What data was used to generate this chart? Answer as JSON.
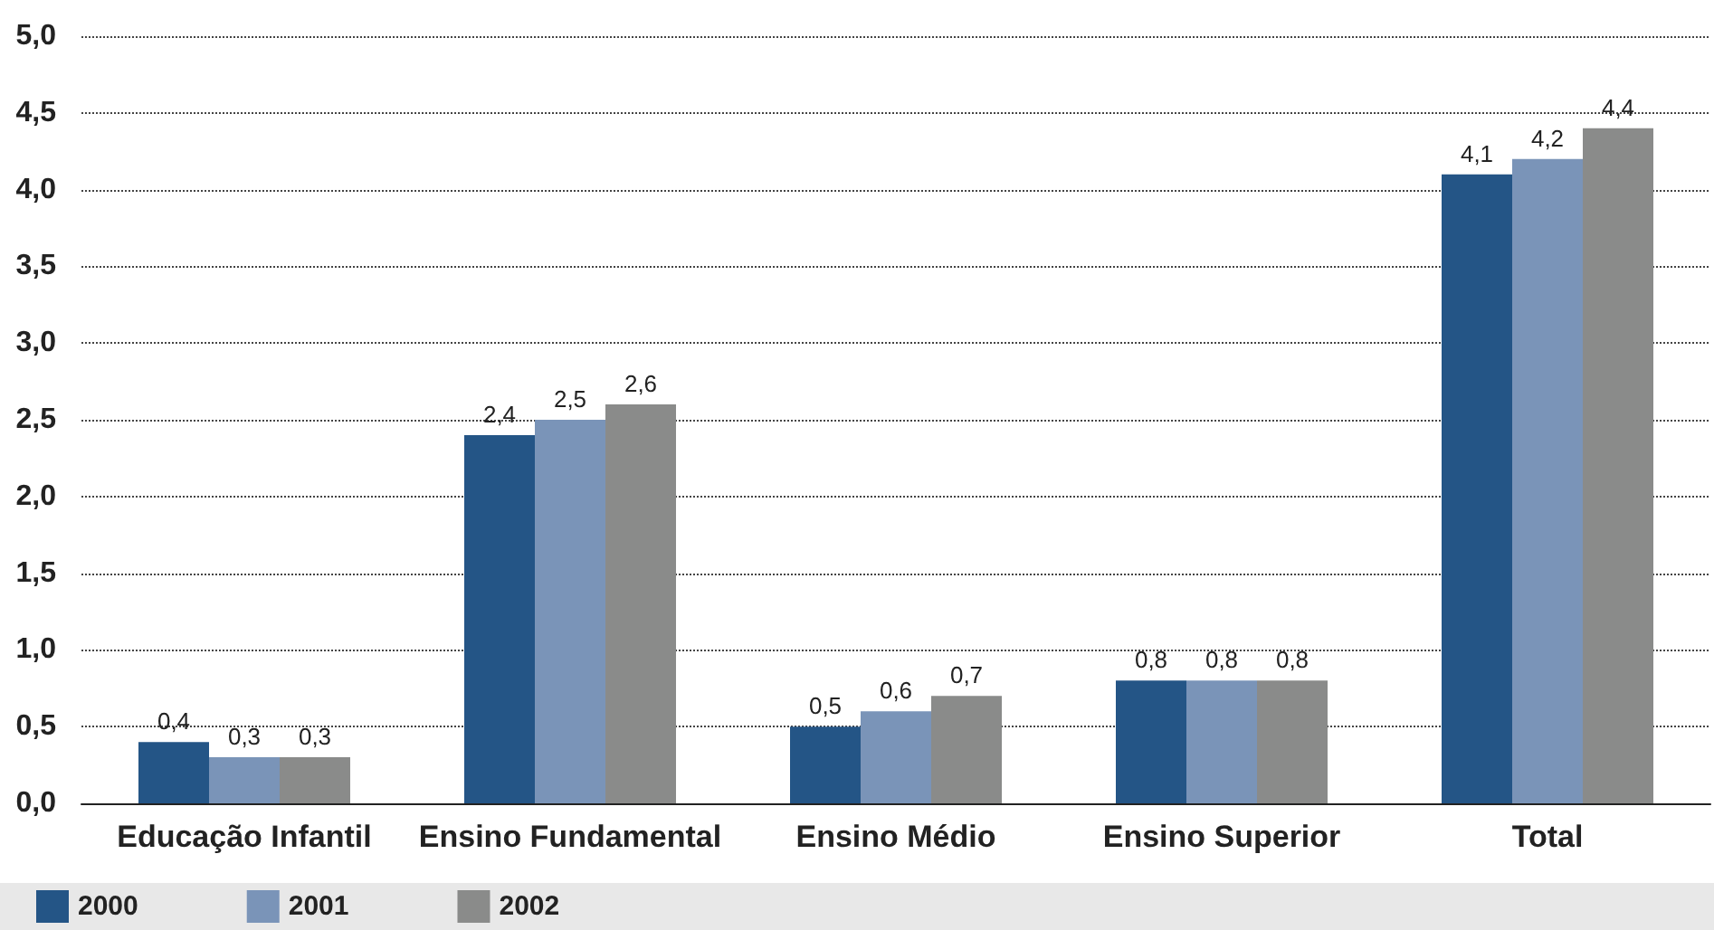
{
  "chart_data": {
    "type": "bar",
    "categories": [
      "Educação Infantil",
      "Ensino Fundamental",
      "Ensino Médio",
      "Ensino Superior",
      "Total"
    ],
    "series": [
      {
        "name": "2000",
        "color": "#245586",
        "values": [
          0.4,
          2.4,
          0.5,
          0.8,
          4.1
        ],
        "value_labels": [
          "0,4",
          "2,4",
          "0,5",
          "0,8",
          "4,1"
        ]
      },
      {
        "name": "2001",
        "color": "#7a94b8",
        "values": [
          0.3,
          2.5,
          0.6,
          0.8,
          4.2
        ],
        "value_labels": [
          "0,3",
          "2,5",
          "0,6",
          "0,8",
          "4,2"
        ]
      },
      {
        "name": "2002",
        "color": "#8a8b8a",
        "values": [
          0.3,
          2.6,
          0.7,
          0.8,
          4.4
        ],
        "value_labels": [
          "0,3",
          "2,6",
          "0,7",
          "0,8",
          "4,4"
        ]
      }
    ],
    "ylim": [
      0,
      5
    ],
    "yticks": [
      {
        "value": 0,
        "label": "0,0"
      },
      {
        "value": 0.5,
        "label": "0,5"
      },
      {
        "value": 1,
        "label": "1,0"
      },
      {
        "value": 1.5,
        "label": "1,5"
      },
      {
        "value": 2,
        "label": "2,0"
      },
      {
        "value": 2.5,
        "label": "2,5"
      },
      {
        "value": 3,
        "label": "3,0"
      },
      {
        "value": 3.5,
        "label": "3,5"
      },
      {
        "value": 4,
        "label": "4,0"
      },
      {
        "value": 4.5,
        "label": "4,5"
      },
      {
        "value": 5,
        "label": "5,0"
      }
    ],
    "grid": "y",
    "legend": "bottom"
  }
}
